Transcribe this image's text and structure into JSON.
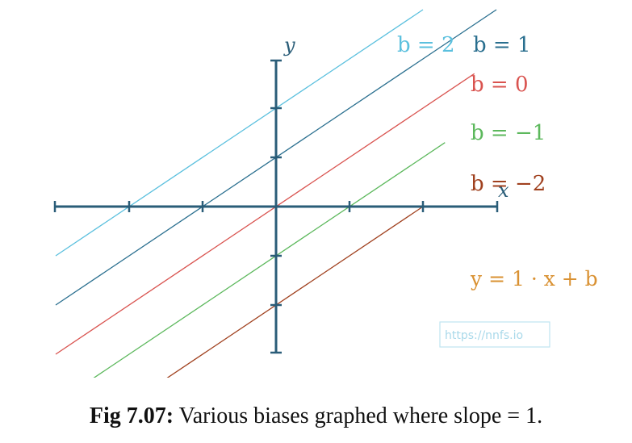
{
  "chart_data": {
    "type": "line",
    "xlabel": "x",
    "ylabel": "y",
    "xlim": [
      -3,
      3
    ],
    "ylim": [
      -3,
      3
    ],
    "grid": false,
    "series": [
      {
        "name": "b = 2",
        "slope": 1,
        "intercept": 2,
        "color": "#5bc0de"
      },
      {
        "name": "b = 1",
        "slope": 1,
        "intercept": 1,
        "color": "#2a6f8f"
      },
      {
        "name": "b = 0",
        "slope": 1,
        "intercept": 0,
        "color": "#d9534f"
      },
      {
        "name": "b = −1",
        "slope": 1,
        "intercept": -1,
        "color": "#5cb85c"
      },
      {
        "name": "b = −2",
        "slope": 1,
        "intercept": -2,
        "color": "#a0411f"
      }
    ],
    "equation": "y = 1 · x + b",
    "equation_color": "#d99132",
    "axis_color": "#2a5d78"
  },
  "watermark": "https://nnfs.io",
  "caption": {
    "label": "Fig 7.07:",
    "text": " Various biases graphed where slope = 1."
  }
}
